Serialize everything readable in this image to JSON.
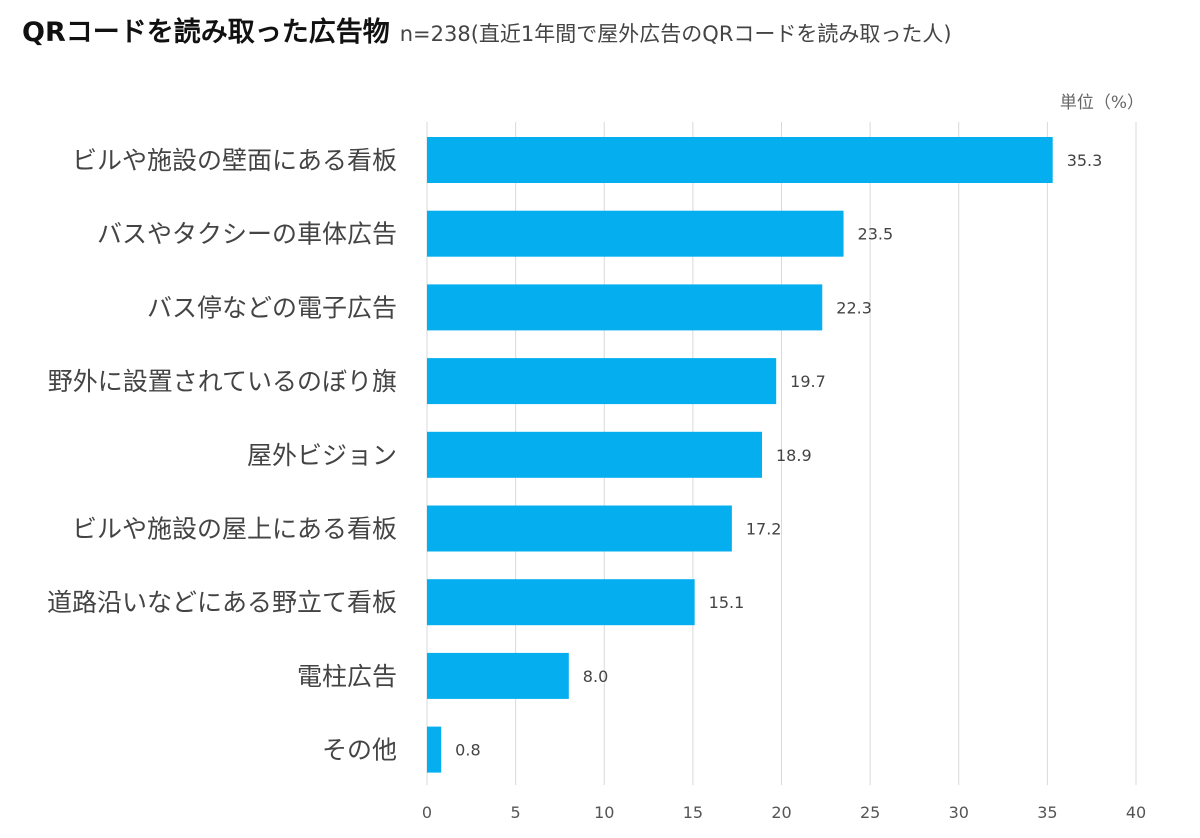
{
  "header": {
    "title": "QRコードを読み取った広告物",
    "subtitle": "n=238(直近1年間で屋外広告のQRコードを読み取った人)"
  },
  "unit_label": "単位（%）",
  "colors": {
    "bar": "#05AFEF",
    "grid": "#D9D9D9",
    "text": "#444444"
  },
  "chart_data": {
    "type": "bar",
    "orientation": "horizontal",
    "title": "QRコードを読み取った広告物",
    "subtitle": "n=238(直近1年間で屋外広告のQRコードを読み取った人)",
    "unit": "単位（%）",
    "categories": [
      "ビルや施設の壁面にある看板",
      "バスやタクシーの車体広告",
      "バス停などの電子広告",
      "野外に設置されているのぼり旗",
      "屋外ビジョン",
      "ビルや施設の屋上にある看板",
      "道路沿いなどにある野立て看板",
      "電柱広告",
      "その他"
    ],
    "values": [
      35.3,
      23.5,
      22.3,
      19.7,
      18.9,
      17.2,
      15.1,
      8.0,
      0.8
    ],
    "value_labels": [
      "35.3",
      "23.5",
      "22.3",
      "19.7",
      "18.9",
      "17.2",
      "15.1",
      "8.0",
      "0.8"
    ],
    "xlim": [
      0,
      40
    ],
    "xticks": [
      0,
      5,
      10,
      15,
      20,
      25,
      30,
      35,
      40
    ],
    "grid": true,
    "legend": "none"
  }
}
